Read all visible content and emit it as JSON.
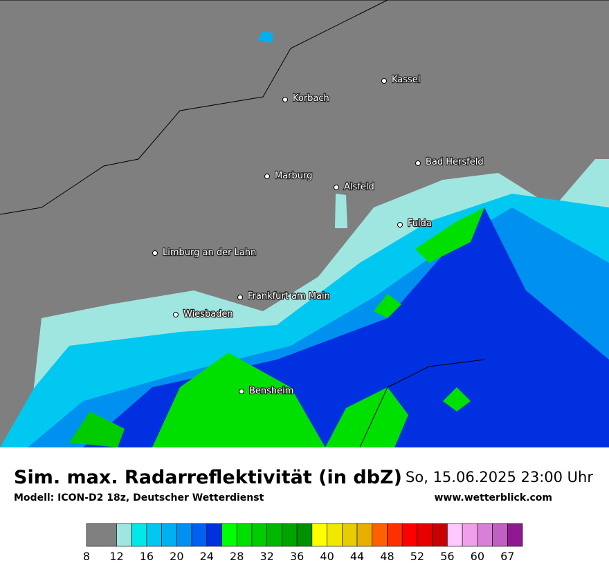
{
  "map": {
    "cities": [
      "Kassel",
      "Korbach",
      "Bad Hersfeld",
      "Marburg",
      "Alsfeld",
      "Fulda",
      "Limburg an der Lahn",
      "Frankfurt am Main",
      "Wiesbaden",
      "Bensheim"
    ]
  },
  "footer": {
    "title": "Sim. max. Radarreflektivität (in dbZ)",
    "subtitle": "Modell: ICON-D2 18z, Deutscher Wetterdienst",
    "datetime": "So, 15.06.2025 23:00 Uhr",
    "website": "www.wetterblick.com"
  },
  "colorbar": {
    "colors": [
      "#808080",
      "#a0e6e0",
      "#00e8e8",
      "#00c8f0",
      "#00b0f0",
      "#0090f0",
      "#0060f0",
      "#0030e0",
      "#00ff00",
      "#00e000",
      "#00cc00",
      "#00b800",
      "#00a400",
      "#009000",
      "#ffff00",
      "#f0e800",
      "#e6cc00",
      "#e6b000",
      "#ff6000",
      "#ff3000",
      "#ff0000",
      "#e60000",
      "#c80000",
      "#ffc8ff",
      "#f0a0e8",
      "#d880d8",
      "#c060c0",
      "#901890"
    ],
    "ticks": [
      8,
      12,
      16,
      20,
      24,
      28,
      32,
      36,
      40,
      44,
      48,
      52,
      56,
      60,
      67
    ]
  }
}
